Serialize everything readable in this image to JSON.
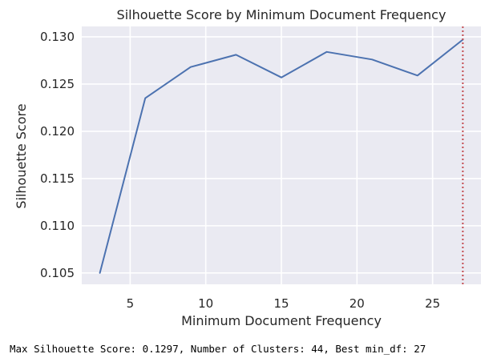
{
  "chart_data": {
    "type": "line",
    "title": "Silhouette Score by Minimum Document Frequency",
    "xlabel": "Minimum Document Frequency",
    "ylabel": "Silhouette Score",
    "xlim": [
      1.8,
      28.2
    ],
    "ylim": [
      0.1038,
      0.1311
    ],
    "xticks": [
      5,
      10,
      15,
      20,
      25
    ],
    "yticks": [
      0.105,
      0.11,
      0.115,
      0.12,
      0.125,
      0.13
    ],
    "ytick_labels": [
      "0.105",
      "0.110",
      "0.115",
      "0.120",
      "0.125",
      "0.130"
    ],
    "grid": true,
    "series": [
      {
        "color": "#4c72b0",
        "x": [
          3,
          6,
          9,
          12,
          15,
          18,
          21,
          24,
          27
        ],
        "y": [
          0.105,
          0.1235,
          0.1268,
          0.1281,
          0.1257,
          0.1284,
          0.1276,
          0.1259,
          0.1297
        ]
      }
    ],
    "vline": {
      "x": 27,
      "color": "#c44e52",
      "style": "dotted"
    }
  },
  "footnote": "Max Silhouette Score: 0.1297, Number of Clusters: 44, Best min_df: 27",
  "colors": {
    "plot_background": "#eaeaf2",
    "grid": "#ffffff",
    "text": "#262626"
  }
}
